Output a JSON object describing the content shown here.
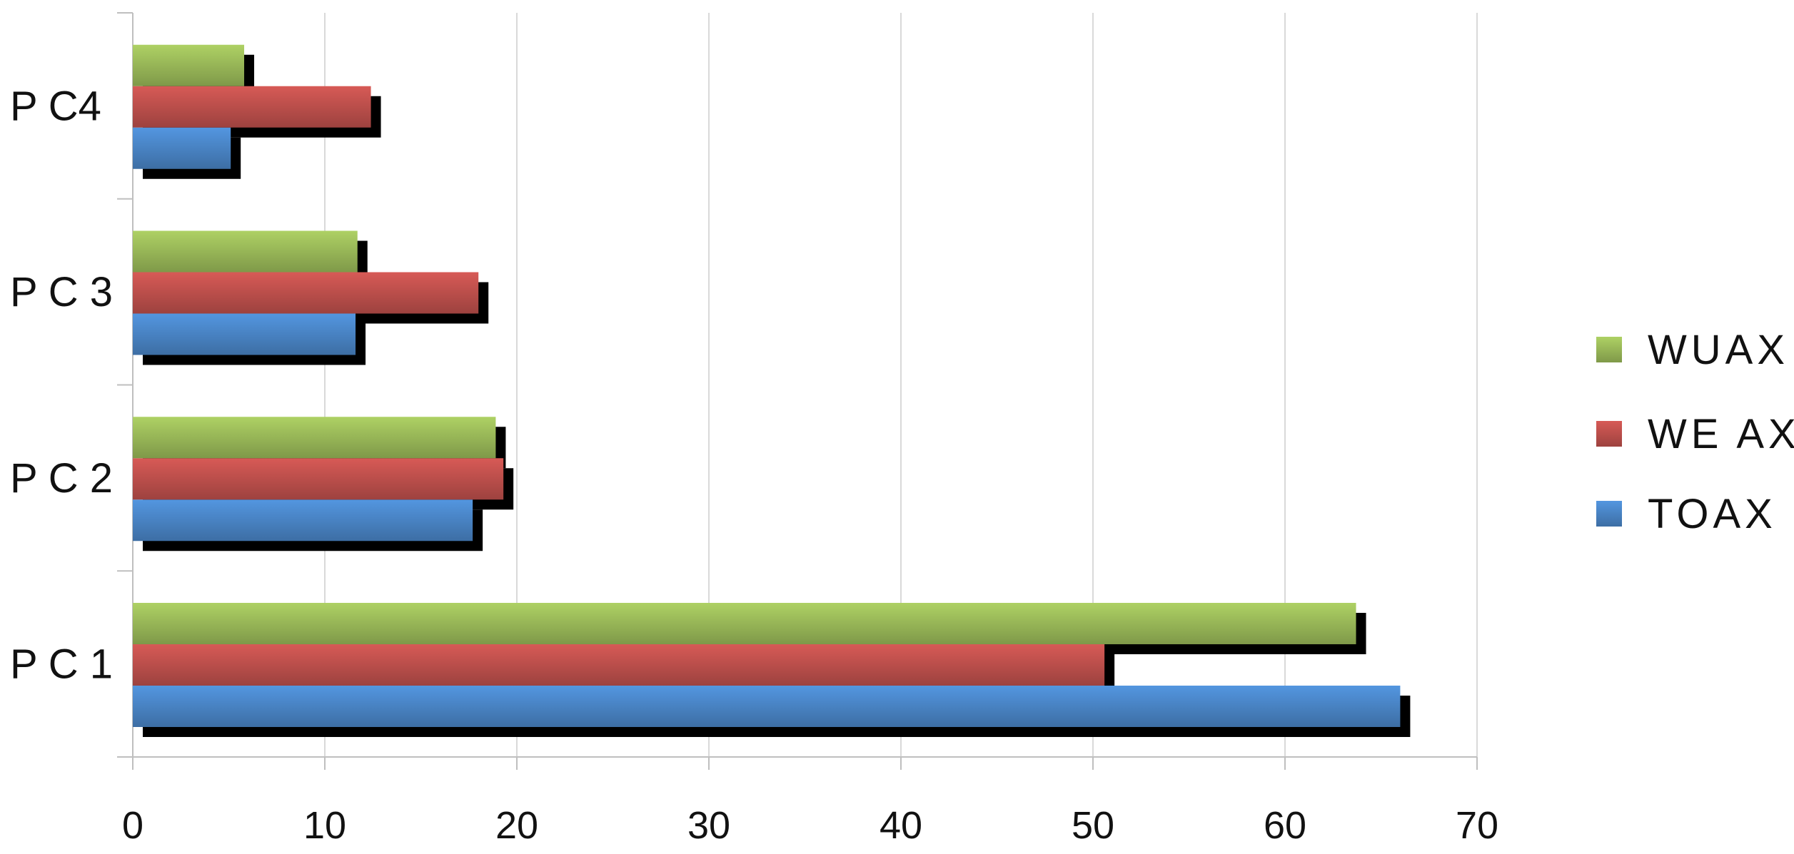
{
  "chart_data": {
    "type": "bar",
    "orientation": "horizontal",
    "categories": [
      "P C 1",
      "P C 2",
      "P C 3",
      "P C4"
    ],
    "series": [
      {
        "name": "TOAX",
        "color": "#4a86c8",
        "values": [
          66,
          17.7,
          11.6,
          5.1
        ]
      },
      {
        "name": "WE AX",
        "color": "#c0504d",
        "values": [
          50.6,
          19.3,
          18,
          12.4
        ]
      },
      {
        "name": "WUAX",
        "color": "#9bbb59",
        "values": [
          63.7,
          18.9,
          11.7,
          5.8
        ]
      }
    ],
    "xlim": [
      0,
      70
    ],
    "xticks": [
      0,
      10,
      20,
      30,
      40,
      50,
      60,
      70
    ],
    "legend_entries": [
      "WUAX",
      "WE AX",
      "TOAX"
    ],
    "grid": true,
    "legend": "right"
  }
}
